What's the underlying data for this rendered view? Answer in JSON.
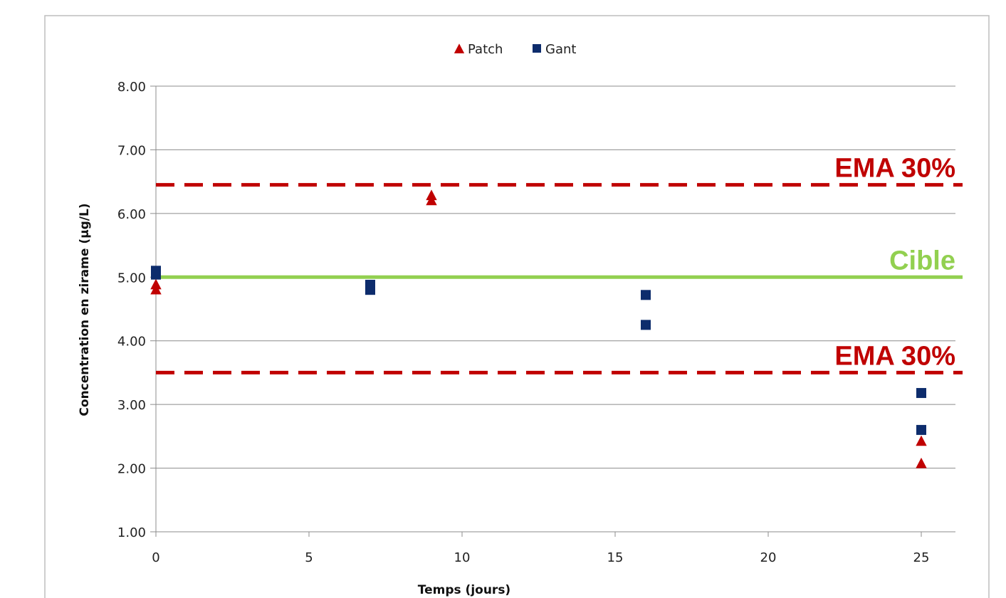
{
  "chart_data": {
    "type": "scatter",
    "xlabel": "Temps (jours)",
    "ylabel": "Concentration en zirame (µg/L)",
    "xlim": [
      0,
      26
    ],
    "ylim": [
      1.0,
      8.0
    ],
    "x_ticks": [
      0,
      5,
      10,
      15,
      20,
      25
    ],
    "y_ticks": [
      1.0,
      2.0,
      3.0,
      4.0,
      5.0,
      6.0,
      7.0,
      8.0
    ],
    "y_tick_labels": [
      "1.00",
      "2.00",
      "3.00",
      "4.00",
      "5.00",
      "6.00",
      "7.00",
      "8.00"
    ],
    "grid": "horizontal",
    "legend": {
      "placement": "top-center",
      "entries": [
        "Patch",
        "Gant"
      ]
    },
    "series": [
      {
        "name": "Patch",
        "marker": "triangle",
        "color": "#c00000",
        "points": [
          {
            "x": 0,
            "y": 4.8
          },
          {
            "x": 0,
            "y": 4.88
          },
          {
            "x": 9,
            "y": 6.2
          },
          {
            "x": 9,
            "y": 6.28
          },
          {
            "x": 25,
            "y": 2.42
          },
          {
            "x": 25,
            "y": 2.07
          }
        ]
      },
      {
        "name": "Gant",
        "marker": "square",
        "color": "#0d2c6c",
        "points": [
          {
            "x": 0,
            "y": 5.04
          },
          {
            "x": 0,
            "y": 5.1
          },
          {
            "x": 7,
            "y": 4.8
          },
          {
            "x": 7,
            "y": 4.88
          },
          {
            "x": 16,
            "y": 4.72
          },
          {
            "x": 16,
            "y": 4.25
          },
          {
            "x": 25,
            "y": 3.18
          },
          {
            "x": 25,
            "y": 2.6
          }
        ]
      }
    ],
    "reference_lines": [
      {
        "label": "EMA 30%",
        "y": 6.45,
        "style": "dashed",
        "color": "#c00000"
      },
      {
        "label": "Cible",
        "y": 5.0,
        "style": "solid",
        "color": "#92d050"
      },
      {
        "label": "EMA 30%",
        "y": 3.5,
        "style": "dashed",
        "color": "#c00000"
      }
    ]
  }
}
